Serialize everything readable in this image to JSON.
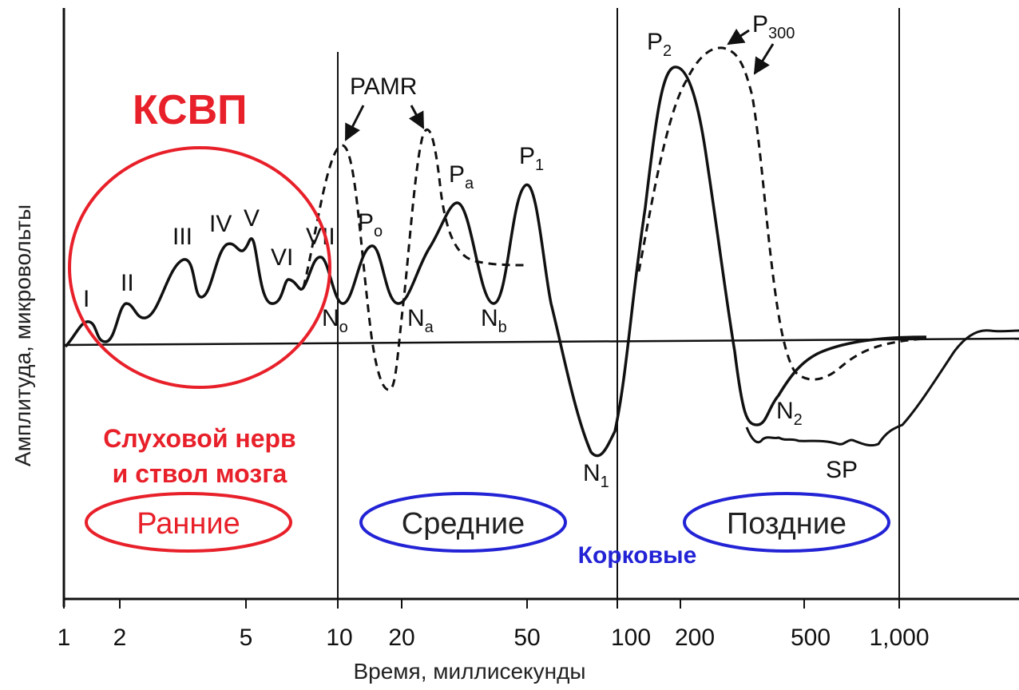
{
  "title_red": "КСВП",
  "red_caption_line1": "Слуховой нерв",
  "red_caption_line2": "и ствол мозга",
  "cortical_label": "Корковые",
  "groups": {
    "early": "Ранние",
    "middle": "Средние",
    "late": "Поздние"
  },
  "axes": {
    "xlabel": "Время, миллисекунды",
    "ylabel": "Амплитуда, микровольты",
    "x_ticks": [
      "1",
      "2",
      "5",
      "10",
      "20",
      "50",
      "100",
      "200",
      "500",
      "1,000"
    ]
  },
  "waves": {
    "I": "I",
    "II": "II",
    "III": "III",
    "IV": "IV",
    "V": "V",
    "VI": "VI",
    "VII": "VII",
    "Po": "P",
    "Po_sub": "o",
    "No": "N",
    "No_sub": "o",
    "Na": "N",
    "Na_sub": "a",
    "Pa": "P",
    "Pa_sub": "a",
    "Nb": "N",
    "Nb_sub": "b",
    "P1": "P",
    "P1_sub": "1",
    "N1": "N",
    "N1_sub": "1",
    "P2": "P",
    "P2_sub": "2",
    "N2": "N",
    "N2_sub": "2",
    "P300": "P",
    "P300_sub": "300",
    "PAMR": "PAMR",
    "SP": "SP"
  },
  "colors": {
    "red": "#e8202a",
    "blue": "#2323d6",
    "ink": "#111111"
  }
}
